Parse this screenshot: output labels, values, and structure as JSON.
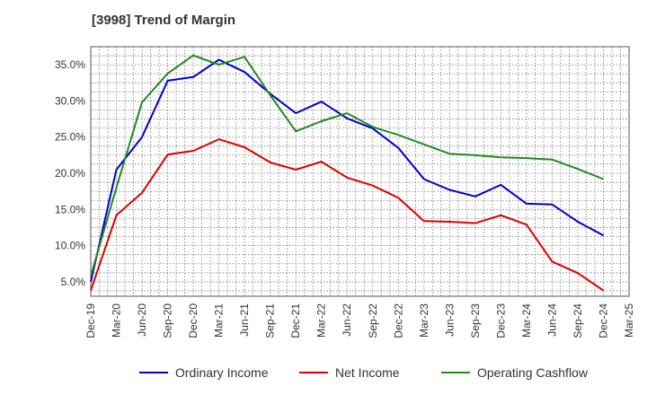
{
  "chart_data": {
    "type": "line",
    "title": "[3998]  Trend of Margin",
    "x": [
      "Dec-19",
      "Mar-20",
      "Jun-20",
      "Sep-20",
      "Dec-20",
      "Mar-21",
      "Jun-21",
      "Sep-21",
      "Dec-21",
      "Mar-22",
      "Jun-22",
      "Sep-22",
      "Dec-22",
      "Mar-23",
      "Jun-23",
      "Sep-23",
      "Dec-23",
      "Mar-24",
      "Jun-24",
      "Sep-24",
      "Dec-24"
    ],
    "x_tick_labels": [
      "Dec-19",
      "Mar-20",
      "Jun-20",
      "Sep-20",
      "Dec-20",
      "Mar-21",
      "Jun-21",
      "Sep-21",
      "Dec-21",
      "Mar-22",
      "Jun-22",
      "Sep-22",
      "Dec-22",
      "Mar-23",
      "Jun-23",
      "Sep-23",
      "Dec-23",
      "Mar-24",
      "Jun-24",
      "Sep-24",
      "Dec-24",
      "Mar-25"
    ],
    "y_ticks": [
      5.0,
      10.0,
      15.0,
      20.0,
      25.0,
      30.0,
      35.0
    ],
    "y_tick_labels": [
      "5.0%",
      "10.0%",
      "15.0%",
      "20.0%",
      "25.0%",
      "30.0%",
      "35.0%"
    ],
    "ylim": [
      3.0,
      37.5
    ],
    "grid": true,
    "legend_position": "bottom",
    "series": [
      {
        "name": "Ordinary Income",
        "color": "#0000cc",
        "values": [
          5.0,
          20.5,
          25.0,
          32.8,
          33.3,
          35.7,
          34.0,
          31.0,
          28.3,
          29.9,
          27.6,
          26.2,
          23.5,
          19.2,
          17.7,
          16.8,
          18.4,
          15.8,
          15.7,
          13.3,
          11.4
        ]
      },
      {
        "name": "Net Income",
        "color": "#dd0000",
        "values": [
          3.8,
          14.2,
          17.3,
          22.6,
          23.1,
          24.7,
          23.6,
          21.5,
          20.5,
          21.6,
          19.4,
          18.3,
          16.6,
          13.4,
          13.3,
          13.1,
          14.2,
          12.9,
          7.8,
          6.2,
          3.8
        ]
      },
      {
        "name": "Operating Cashflow",
        "color": "#228822",
        "values": [
          5.8,
          18.0,
          29.8,
          33.8,
          36.3,
          35.0,
          36.1,
          30.8,
          25.8,
          27.2,
          28.3,
          26.4,
          25.3,
          24.0,
          22.7,
          22.5,
          22.2,
          22.1,
          21.9,
          20.6,
          19.2
        ]
      }
    ]
  }
}
